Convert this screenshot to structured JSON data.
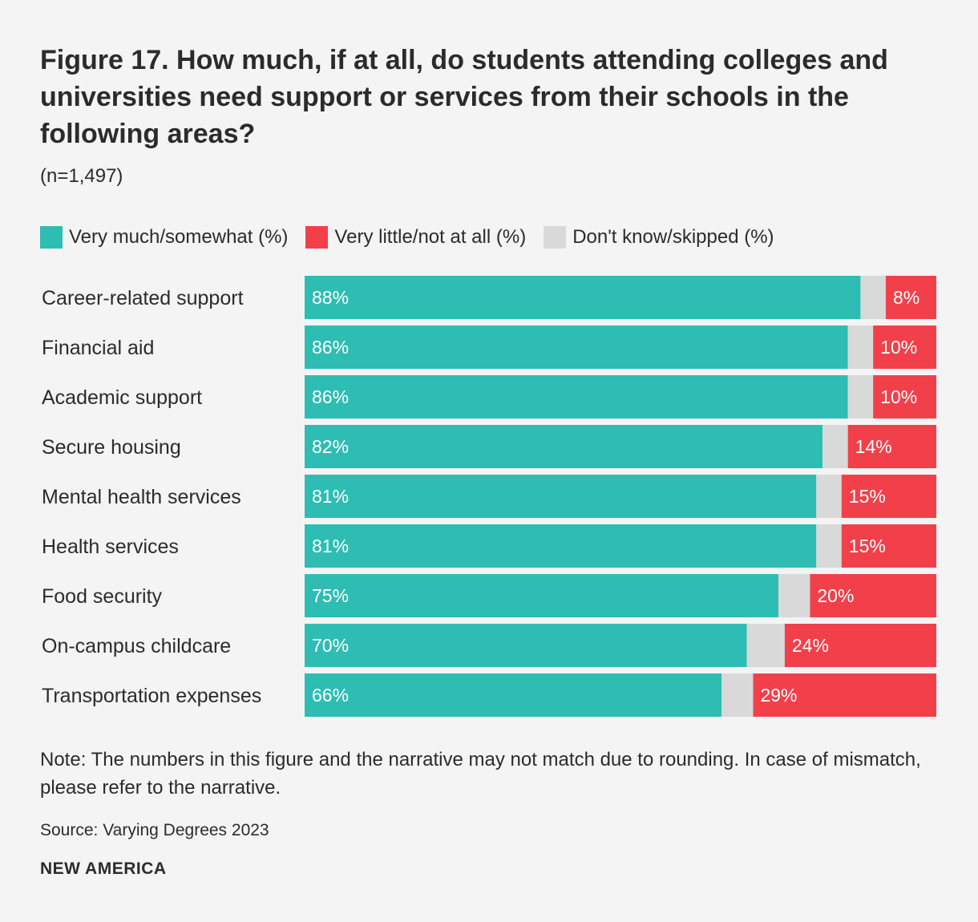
{
  "colors": {
    "positive": "#2ebdb3",
    "negative": "#f2404b",
    "unknown": "#d9d9d9",
    "background": "#f4f4f4",
    "text": "#2b2b2b"
  },
  "chart_data": {
    "type": "bar",
    "orientation": "horizontal",
    "stacked": true,
    "title": "Figure 17. How much, if at all, do students attending colleges and universities need support or services from their schools in the following areas?",
    "subtitle": "(n=1,497)",
    "categories": [
      "Career-related support",
      "Financial aid",
      "Academic support",
      "Secure housing",
      "Mental health services",
      "Health services",
      "Food security",
      "On-campus childcare",
      "Transportation expenses"
    ],
    "series": [
      {
        "name": "Very much/somewhat (%)",
        "color_key": "positive",
        "values": [
          88,
          86,
          86,
          82,
          81,
          81,
          75,
          70,
          66
        ],
        "labels": [
          "88%",
          "86%",
          "86%",
          "82%",
          "81%",
          "81%",
          "75%",
          "70%",
          "66%"
        ]
      },
      {
        "name": "Don't know/skipped (%)",
        "color_key": "unknown",
        "values": [
          4,
          4,
          4,
          4,
          4,
          4,
          5,
          6,
          5
        ],
        "labels": [
          "",
          "",
          "",
          "",
          "",
          "",
          "",
          "",
          ""
        ]
      },
      {
        "name": "Very little/not at all (%)",
        "color_key": "negative",
        "values": [
          8,
          10,
          10,
          14,
          15,
          15,
          20,
          24,
          29
        ],
        "labels": [
          "8%",
          "10%",
          "10%",
          "14%",
          "15%",
          "15%",
          "20%",
          "24%",
          "29%"
        ]
      }
    ],
    "xlim": [
      0,
      100
    ],
    "grid": false,
    "legend": [
      {
        "label": "Very much/somewhat (%)",
        "color_key": "positive"
      },
      {
        "label": "Very little/not at all (%)",
        "color_key": "negative"
      },
      {
        "label": "Don't know/skipped (%)",
        "color_key": "unknown"
      }
    ],
    "legend_position": "top-left"
  },
  "note": "Note: The numbers in this figure and the narrative may not match due to rounding. In case of mismatch, please refer to the narrative.",
  "source": "Source: Varying Degrees 2023",
  "brand": "NEW AMERICA"
}
